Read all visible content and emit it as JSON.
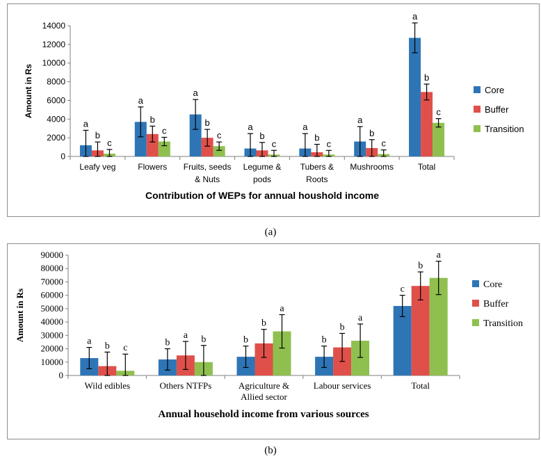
{
  "chart_data": [
    {
      "type": "bar",
      "panel_label": "a",
      "title": "Contribution of WEPs for annual houshold income",
      "xlabel": "Contribution of WEPs for annual houshold income",
      "ylabel": "Amount in Rs",
      "ylim": [
        0,
        14000
      ],
      "yticks": [
        "0",
        "2000",
        "4000",
        "6000",
        "8000",
        "10000",
        "12000",
        "14000"
      ],
      "ytick_values": [
        0,
        2000,
        4000,
        6000,
        8000,
        10000,
        12000,
        14000
      ],
      "categories": [
        [
          "Leafy veg"
        ],
        [
          "Flowers"
        ],
        [
          "Fruits, seeds",
          "& Nuts"
        ],
        [
          "Legume &",
          "pods"
        ],
        [
          "Tubers &",
          "Roots"
        ],
        [
          "Mushrooms"
        ],
        [
          "Total"
        ]
      ],
      "legend_position": "right",
      "series": [
        {
          "name": "Core",
          "color": "#2e75b6",
          "values": [
            1200,
            3700,
            4500,
            850,
            850,
            1600,
            12700
          ],
          "errors": [
            1600,
            1600,
            1600,
            1600,
            1600,
            1600,
            1600
          ],
          "letters": [
            "a",
            "a",
            "a",
            "a",
            "a",
            "a",
            "a"
          ]
        },
        {
          "name": "Buffer",
          "color": "#e0504a",
          "values": [
            650,
            2400,
            2000,
            650,
            450,
            900,
            6900
          ],
          "errors": [
            900,
            850,
            900,
            850,
            850,
            900,
            850
          ],
          "letters": [
            "b",
            "b",
            "b",
            "b",
            "b",
            "b",
            "b"
          ]
        },
        {
          "name": "Transition",
          "color": "#8fc04f",
          "values": [
            300,
            1600,
            1100,
            200,
            200,
            250,
            3600
          ],
          "errors": [
            450,
            450,
            450,
            450,
            450,
            450,
            450
          ],
          "letters": [
            "c",
            "c",
            "c",
            "c",
            "c",
            "c",
            "c"
          ]
        }
      ]
    },
    {
      "type": "bar",
      "panel_label": "b",
      "title": "Annual household income from various sources",
      "xlabel": "Annual household income from various sources",
      "ylabel": "Amount in Rs",
      "ylim": [
        0,
        90000
      ],
      "yticks": [
        "0",
        "10000",
        "20000",
        "30000",
        "40000",
        "50000",
        "60000",
        "70000",
        "80000",
        "90000"
      ],
      "ytick_values": [
        0,
        10000,
        20000,
        30000,
        40000,
        50000,
        60000,
        70000,
        80000,
        90000
      ],
      "categories": [
        [
          "Wild edibles"
        ],
        [
          "Others NTFPs"
        ],
        [
          "Agriculture &",
          "Allied sector"
        ],
        [
          "Labour services"
        ],
        [
          "Total"
        ]
      ],
      "legend_position": "right",
      "series": [
        {
          "name": "Core",
          "color": "#2e75b6",
          "values": [
            13000,
            12000,
            14000,
            14000,
            52000
          ],
          "errors": [
            8000,
            8000,
            8000,
            8000,
            8000
          ],
          "letters": [
            "a",
            "b",
            "b",
            "b",
            "c"
          ]
        },
        {
          "name": "Buffer",
          "color": "#e0504a",
          "values": [
            7000,
            15000,
            24000,
            21000,
            67000
          ],
          "errors": [
            10500,
            10500,
            10500,
            10500,
            10500
          ],
          "letters": [
            "b",
            "a",
            "b",
            "b",
            "b"
          ]
        },
        {
          "name": "Transition",
          "color": "#8fc04f",
          "values": [
            3500,
            10000,
            33000,
            26000,
            73000
          ],
          "errors": [
            12500,
            12500,
            12500,
            12500,
            12500
          ],
          "letters": [
            "c",
            "b",
            "a",
            "a",
            "a"
          ]
        }
      ]
    }
  ],
  "captions": {
    "a": "(a)",
    "b": "(b)"
  }
}
